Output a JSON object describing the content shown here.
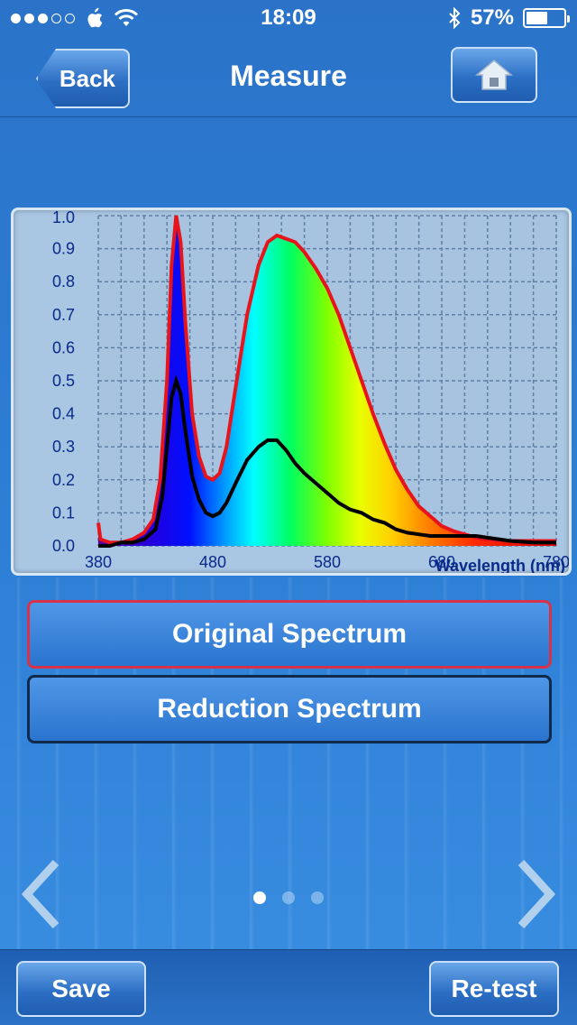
{
  "status_bar": {
    "time": "18:09",
    "battery": "57%",
    "battery_level": 0.57,
    "icons": [
      "signal-dots-icon",
      "apple-icon",
      "wifi-icon",
      "bluetooth-icon",
      "battery-icon"
    ]
  },
  "nav": {
    "title": "Measure",
    "back_label": "Back",
    "home_icon": "home-icon"
  },
  "buttons": {
    "original": "Original Spectrum",
    "reduction": "Reduction Spectrum",
    "save": "Save",
    "retest": "Re-test"
  },
  "pager": {
    "pages": 3,
    "active": 0
  },
  "colors": {
    "original_line": "#e8141c",
    "reduction_line": "#000000",
    "axis_text": "#0a2a8a"
  },
  "chart_data": {
    "type": "line",
    "xlabel": "Wavelength (nm)",
    "ylabel": "",
    "xlim": [
      380,
      780
    ],
    "ylim": [
      0,
      1.0
    ],
    "x_ticks": [
      "380",
      "480",
      "580",
      "680",
      "780"
    ],
    "y_ticks": [
      "0.0",
      "0.1",
      "0.2",
      "0.3",
      "0.4",
      "0.5",
      "0.6",
      "0.7",
      "0.8",
      "0.9",
      "1.0"
    ],
    "grid": true,
    "fill": "visible-spectrum-gradient under original series",
    "series": [
      {
        "key": "original",
        "color": "#e8141c",
        "points": [
          [
            380,
            0.07
          ],
          [
            382,
            0.02
          ],
          [
            390,
            0.01
          ],
          [
            400,
            0.01
          ],
          [
            410,
            0.02
          ],
          [
            420,
            0.04
          ],
          [
            428,
            0.08
          ],
          [
            434,
            0.2
          ],
          [
            440,
            0.5
          ],
          [
            444,
            0.85
          ],
          [
            448,
            1.0
          ],
          [
            452,
            0.92
          ],
          [
            456,
            0.68
          ],
          [
            462,
            0.4
          ],
          [
            468,
            0.27
          ],
          [
            474,
            0.21
          ],
          [
            480,
            0.2
          ],
          [
            486,
            0.22
          ],
          [
            492,
            0.3
          ],
          [
            500,
            0.48
          ],
          [
            510,
            0.7
          ],
          [
            520,
            0.85
          ],
          [
            528,
            0.92
          ],
          [
            536,
            0.94
          ],
          [
            544,
            0.93
          ],
          [
            552,
            0.92
          ],
          [
            560,
            0.89
          ],
          [
            570,
            0.84
          ],
          [
            580,
            0.78
          ],
          [
            590,
            0.7
          ],
          [
            600,
            0.6
          ],
          [
            610,
            0.5
          ],
          [
            620,
            0.4
          ],
          [
            630,
            0.31
          ],
          [
            640,
            0.23
          ],
          [
            650,
            0.17
          ],
          [
            660,
            0.12
          ],
          [
            670,
            0.09
          ],
          [
            680,
            0.06
          ],
          [
            690,
            0.045
          ],
          [
            700,
            0.035
          ],
          [
            710,
            0.025
          ],
          [
            720,
            0.02
          ],
          [
            740,
            0.015
          ],
          [
            760,
            0.015
          ],
          [
            780,
            0.015
          ]
        ]
      },
      {
        "key": "reduction",
        "color": "#000000",
        "points": [
          [
            380,
            0.0
          ],
          [
            390,
            0.0
          ],
          [
            400,
            0.01
          ],
          [
            410,
            0.01
          ],
          [
            420,
            0.02
          ],
          [
            430,
            0.05
          ],
          [
            436,
            0.15
          ],
          [
            440,
            0.3
          ],
          [
            444,
            0.45
          ],
          [
            448,
            0.5
          ],
          [
            452,
            0.46
          ],
          [
            456,
            0.35
          ],
          [
            462,
            0.21
          ],
          [
            468,
            0.14
          ],
          [
            474,
            0.1
          ],
          [
            480,
            0.09
          ],
          [
            486,
            0.1
          ],
          [
            492,
            0.13
          ],
          [
            500,
            0.19
          ],
          [
            510,
            0.26
          ],
          [
            520,
            0.3
          ],
          [
            528,
            0.32
          ],
          [
            536,
            0.32
          ],
          [
            544,
            0.29
          ],
          [
            552,
            0.25
          ],
          [
            560,
            0.22
          ],
          [
            570,
            0.19
          ],
          [
            580,
            0.16
          ],
          [
            590,
            0.13
          ],
          [
            600,
            0.11
          ],
          [
            610,
            0.1
          ],
          [
            620,
            0.08
          ],
          [
            630,
            0.07
          ],
          [
            640,
            0.05
          ],
          [
            650,
            0.04
          ],
          [
            660,
            0.035
          ],
          [
            670,
            0.03
          ],
          [
            680,
            0.03
          ],
          [
            690,
            0.03
          ],
          [
            700,
            0.03
          ],
          [
            710,
            0.03
          ],
          [
            720,
            0.025
          ],
          [
            740,
            0.015
          ],
          [
            760,
            0.01
          ],
          [
            780,
            0.01
          ]
        ]
      }
    ]
  }
}
